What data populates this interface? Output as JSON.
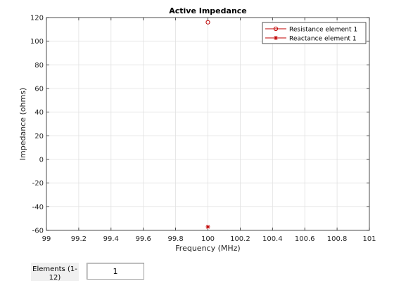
{
  "chart_data": {
    "type": "scatter",
    "title": "Active Impedance",
    "xlabel": "Frequency (MHz)",
    "ylabel": "Impedance (ohms)",
    "xlim": [
      99,
      101
    ],
    "ylim": [
      -60,
      120
    ],
    "xticks": [
      99,
      99.2,
      99.4,
      99.6,
      99.8,
      100,
      100.2,
      100.4,
      100.6,
      100.8,
      101
    ],
    "xtick_labels": [
      "99",
      "99.2",
      "99.4",
      "99.6",
      "99.8",
      "100",
      "100.2",
      "100.4",
      "100.6",
      "100.8",
      "101"
    ],
    "yticks": [
      -60,
      -40,
      -20,
      0,
      20,
      40,
      60,
      80,
      100,
      120
    ],
    "ytick_labels": [
      "-60",
      "-40",
      "-20",
      "0",
      "20",
      "40",
      "60",
      "80",
      "100",
      "120"
    ],
    "grid": true,
    "legend_position": "top-right",
    "series": [
      {
        "name": "Resistance element 1",
        "marker": "circle",
        "color": "#c00000",
        "points": [
          {
            "x": 100,
            "y": 116
          }
        ]
      },
      {
        "name": "Reactance element 1",
        "marker": "asterisk",
        "color": "#c00000",
        "points": [
          {
            "x": 100,
            "y": -57
          }
        ]
      }
    ]
  },
  "controls": {
    "elements_label": "Elements (1-12)",
    "elements_value": "1"
  }
}
